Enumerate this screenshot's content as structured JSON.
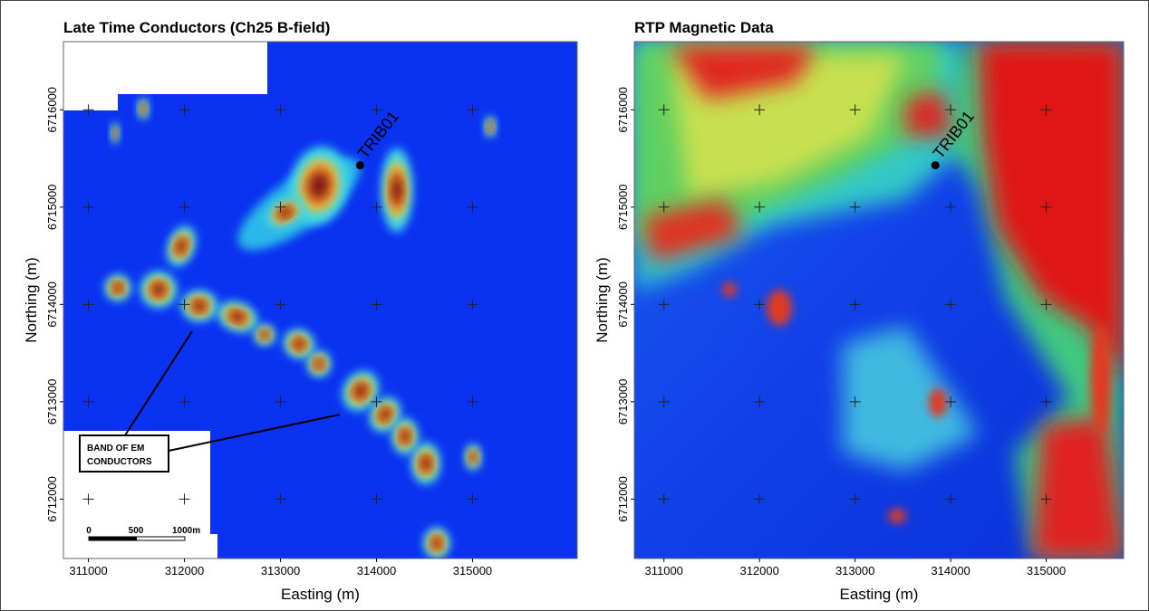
{
  "panels": [
    {
      "title": "Late Time Conductors (Ch25 B-field)",
      "xlabel": "Easting (m)",
      "ylabel": "Northing (m)",
      "xlim": [
        310740,
        316090
      ],
      "ylim": [
        6711390,
        6716700
      ],
      "xticks": [
        311000,
        312000,
        313000,
        314000,
        315000
      ],
      "yticks": [
        6712000,
        6713000,
        6714000,
        6715000,
        6716000
      ],
      "point": {
        "label": "TRIB01",
        "x": 313830,
        "y": 6715430
      },
      "annotation": [
        "BAND OF EM",
        "CONDUCTORS"
      ],
      "scale_bar": [
        "0",
        "500",
        "1000m"
      ]
    },
    {
      "title": "RTP Magnetic Data",
      "xlabel": "Easting (m)",
      "ylabel": "Northing (m)",
      "xlim": [
        310690,
        315810
      ],
      "ylim": [
        6711390,
        6716700
      ],
      "xticks": [
        311000,
        312000,
        313000,
        314000,
        315000
      ],
      "yticks": [
        6712000,
        6713000,
        6714000,
        6715000,
        6716000
      ],
      "point": {
        "label": "TRIB01",
        "x": 313840,
        "y": 6715430
      }
    }
  ]
}
